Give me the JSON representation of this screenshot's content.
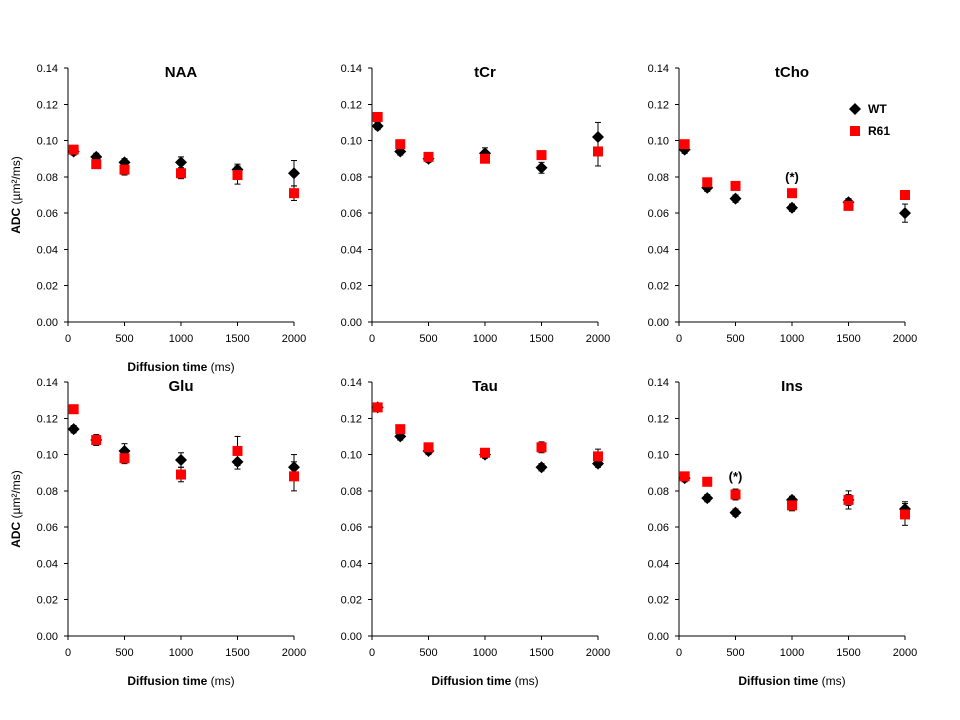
{
  "chart_data": [
    {
      "type": "scatter",
      "title": "NAA",
      "xlabel_bold": "Diffusion time",
      "xlabel_unit": "(ms)",
      "ylabel_bold": "ADC",
      "ylabel_unit": "(µm²/ms)",
      "xlim": [
        0,
        2000
      ],
      "ylim": [
        0,
        0.14
      ],
      "x_ticks": [
        "0",
        "500",
        "1000",
        "1500",
        "2000"
      ],
      "y_ticks": [
        "0.00",
        "0.02",
        "0.04",
        "0.06",
        "0.08",
        "0.10",
        "0.12",
        "0.14"
      ],
      "x": [
        50,
        250,
        500,
        1000,
        1500,
        2000
      ],
      "series": [
        {
          "name": "WT",
          "values": [
            0.094,
            0.091,
            0.088,
            0.088,
            0.084,
            0.082
          ],
          "err": [
            0.002,
            0.002,
            0.002,
            0.003,
            0.003,
            0.007
          ]
        },
        {
          "name": "R61",
          "values": [
            0.095,
            0.087,
            0.084,
            0.082,
            0.081,
            0.071
          ],
          "err": [
            0.002,
            0.002,
            0.003,
            0.003,
            0.005,
            0.004
          ]
        }
      ]
    },
    {
      "type": "scatter",
      "title": "tCr",
      "xlabel_bold": "",
      "xlabel_unit": "",
      "ylabel_bold": "",
      "ylabel_unit": "",
      "xlim": [
        0,
        2000
      ],
      "ylim": [
        0,
        0.14
      ],
      "x_ticks": [
        "0",
        "500",
        "1000",
        "1500",
        "2000"
      ],
      "y_ticks": [
        "0.00",
        "0.02",
        "0.04",
        "0.06",
        "0.08",
        "0.10",
        "0.12",
        "0.14"
      ],
      "x": [
        50,
        250,
        500,
        1000,
        1500,
        2000
      ],
      "series": [
        {
          "name": "WT",
          "values": [
            0.108,
            0.094,
            0.09,
            0.093,
            0.085,
            0.102
          ],
          "err": [
            0.002,
            0.002,
            0.002,
            0.003,
            0.003,
            0.008
          ]
        },
        {
          "name": "R61",
          "values": [
            0.113,
            0.098,
            0.091,
            0.09,
            0.092,
            0.094
          ],
          "err": [
            0.002,
            0.002,
            0.002,
            0.002,
            0.002,
            0.008
          ]
        }
      ]
    },
    {
      "type": "scatter",
      "title": "tCho",
      "xlabel_bold": "",
      "xlabel_unit": "",
      "ylabel_bold": "",
      "ylabel_unit": "",
      "xlim": [
        0,
        2000
      ],
      "ylim": [
        0,
        0.14
      ],
      "x_ticks": [
        "0",
        "500",
        "1000",
        "1500",
        "2000"
      ],
      "y_ticks": [
        "0.00",
        "0.02",
        "0.04",
        "0.06",
        "0.08",
        "0.10",
        "0.12",
        "0.14"
      ],
      "x": [
        50,
        250,
        500,
        1000,
        1500,
        2000
      ],
      "series": [
        {
          "name": "WT",
          "values": [
            0.095,
            0.074,
            0.068,
            0.063,
            0.066,
            0.06
          ],
          "err": [
            0.002,
            0.002,
            0.002,
            0.002,
            0.002,
            0.005
          ]
        },
        {
          "name": "R61",
          "values": [
            0.098,
            0.077,
            0.075,
            0.071,
            0.064,
            0.07
          ],
          "err": [
            0.002,
            0.002,
            0.002,
            0.002,
            0.002,
            0.002
          ]
        }
      ],
      "legend": {
        "position": "top-right",
        "entries": [
          "WT",
          "R61"
        ]
      },
      "annotations": [
        {
          "text": "(*)",
          "x": 1000
        }
      ]
    },
    {
      "type": "scatter",
      "title": "Glu",
      "xlabel_bold": "Diffusion time",
      "xlabel_unit": "(ms)",
      "ylabel_bold": "ADC",
      "ylabel_unit": "(µm²/ms)",
      "xlim": [
        0,
        2000
      ],
      "ylim": [
        0,
        0.14
      ],
      "x_ticks": [
        "0",
        "500",
        "1000",
        "1500",
        "2000"
      ],
      "y_ticks": [
        "0.00",
        "0.02",
        "0.04",
        "0.06",
        "0.08",
        "0.10",
        "0.12",
        "0.14"
      ],
      "x": [
        50,
        250,
        500,
        1000,
        1500,
        2000
      ],
      "series": [
        {
          "name": "WT",
          "values": [
            0.114,
            0.108,
            0.102,
            0.097,
            0.096,
            0.093
          ],
          "err": [
            0.002,
            0.003,
            0.004,
            0.004,
            0.004,
            0.007
          ]
        },
        {
          "name": "R61",
          "values": [
            0.125,
            0.108,
            0.098,
            0.089,
            0.102,
            0.088
          ],
          "err": [
            0.002,
            0.002,
            0.003,
            0.004,
            0.008,
            0.008
          ]
        }
      ]
    },
    {
      "type": "scatter",
      "title": "Tau",
      "xlabel_bold": "Diffusion time",
      "xlabel_unit": "(ms)",
      "ylabel_bold": "",
      "ylabel_unit": "",
      "xlim": [
        0,
        2000
      ],
      "ylim": [
        0,
        0.14
      ],
      "x_ticks": [
        "0",
        "500",
        "1000",
        "1500",
        "2000"
      ],
      "y_ticks": [
        "0.00",
        "0.02",
        "0.04",
        "0.06",
        "0.08",
        "0.10",
        "0.12",
        "0.14"
      ],
      "x": [
        50,
        250,
        500,
        1000,
        1500,
        2000
      ],
      "series": [
        {
          "name": "WT",
          "values": [
            0.126,
            0.11,
            0.102,
            0.1,
            0.093,
            0.095
          ],
          "err": [
            0.002,
            0.002,
            0.002,
            0.002,
            0.002,
            0.002
          ]
        },
        {
          "name": "R61",
          "values": [
            0.126,
            0.114,
            0.104,
            0.101,
            0.104,
            0.099
          ],
          "err": [
            0.002,
            0.002,
            0.002,
            0.002,
            0.003,
            0.004
          ]
        }
      ]
    },
    {
      "type": "scatter",
      "title": "Ins",
      "xlabel_bold": "Diffusion time",
      "xlabel_unit": "(ms)",
      "ylabel_bold": "",
      "ylabel_unit": "",
      "xlim": [
        0,
        2000
      ],
      "ylim": [
        0,
        0.14
      ],
      "x_ticks": [
        "0",
        "500",
        "1000",
        "1500",
        "2000"
      ],
      "y_ticks": [
        "0.00",
        "0.02",
        "0.04",
        "0.06",
        "0.08",
        "0.10",
        "0.12",
        "0.14"
      ],
      "x": [
        50,
        250,
        500,
        1000,
        1500,
        2000
      ],
      "series": [
        {
          "name": "WT",
          "values": [
            0.087,
            0.076,
            0.068,
            0.075,
            0.075,
            0.07
          ],
          "err": [
            0.002,
            0.002,
            0.002,
            0.002,
            0.003,
            0.004
          ]
        },
        {
          "name": "R61",
          "values": [
            0.088,
            0.085,
            0.078,
            0.072,
            0.075,
            0.067
          ],
          "err": [
            0.002,
            0.002,
            0.003,
            0.003,
            0.005,
            0.006
          ]
        }
      ],
      "annotations": [
        {
          "text": "(*)",
          "x": 500
        }
      ]
    }
  ],
  "colors": {
    "WT": "#000000",
    "R61": "#ff0000"
  }
}
